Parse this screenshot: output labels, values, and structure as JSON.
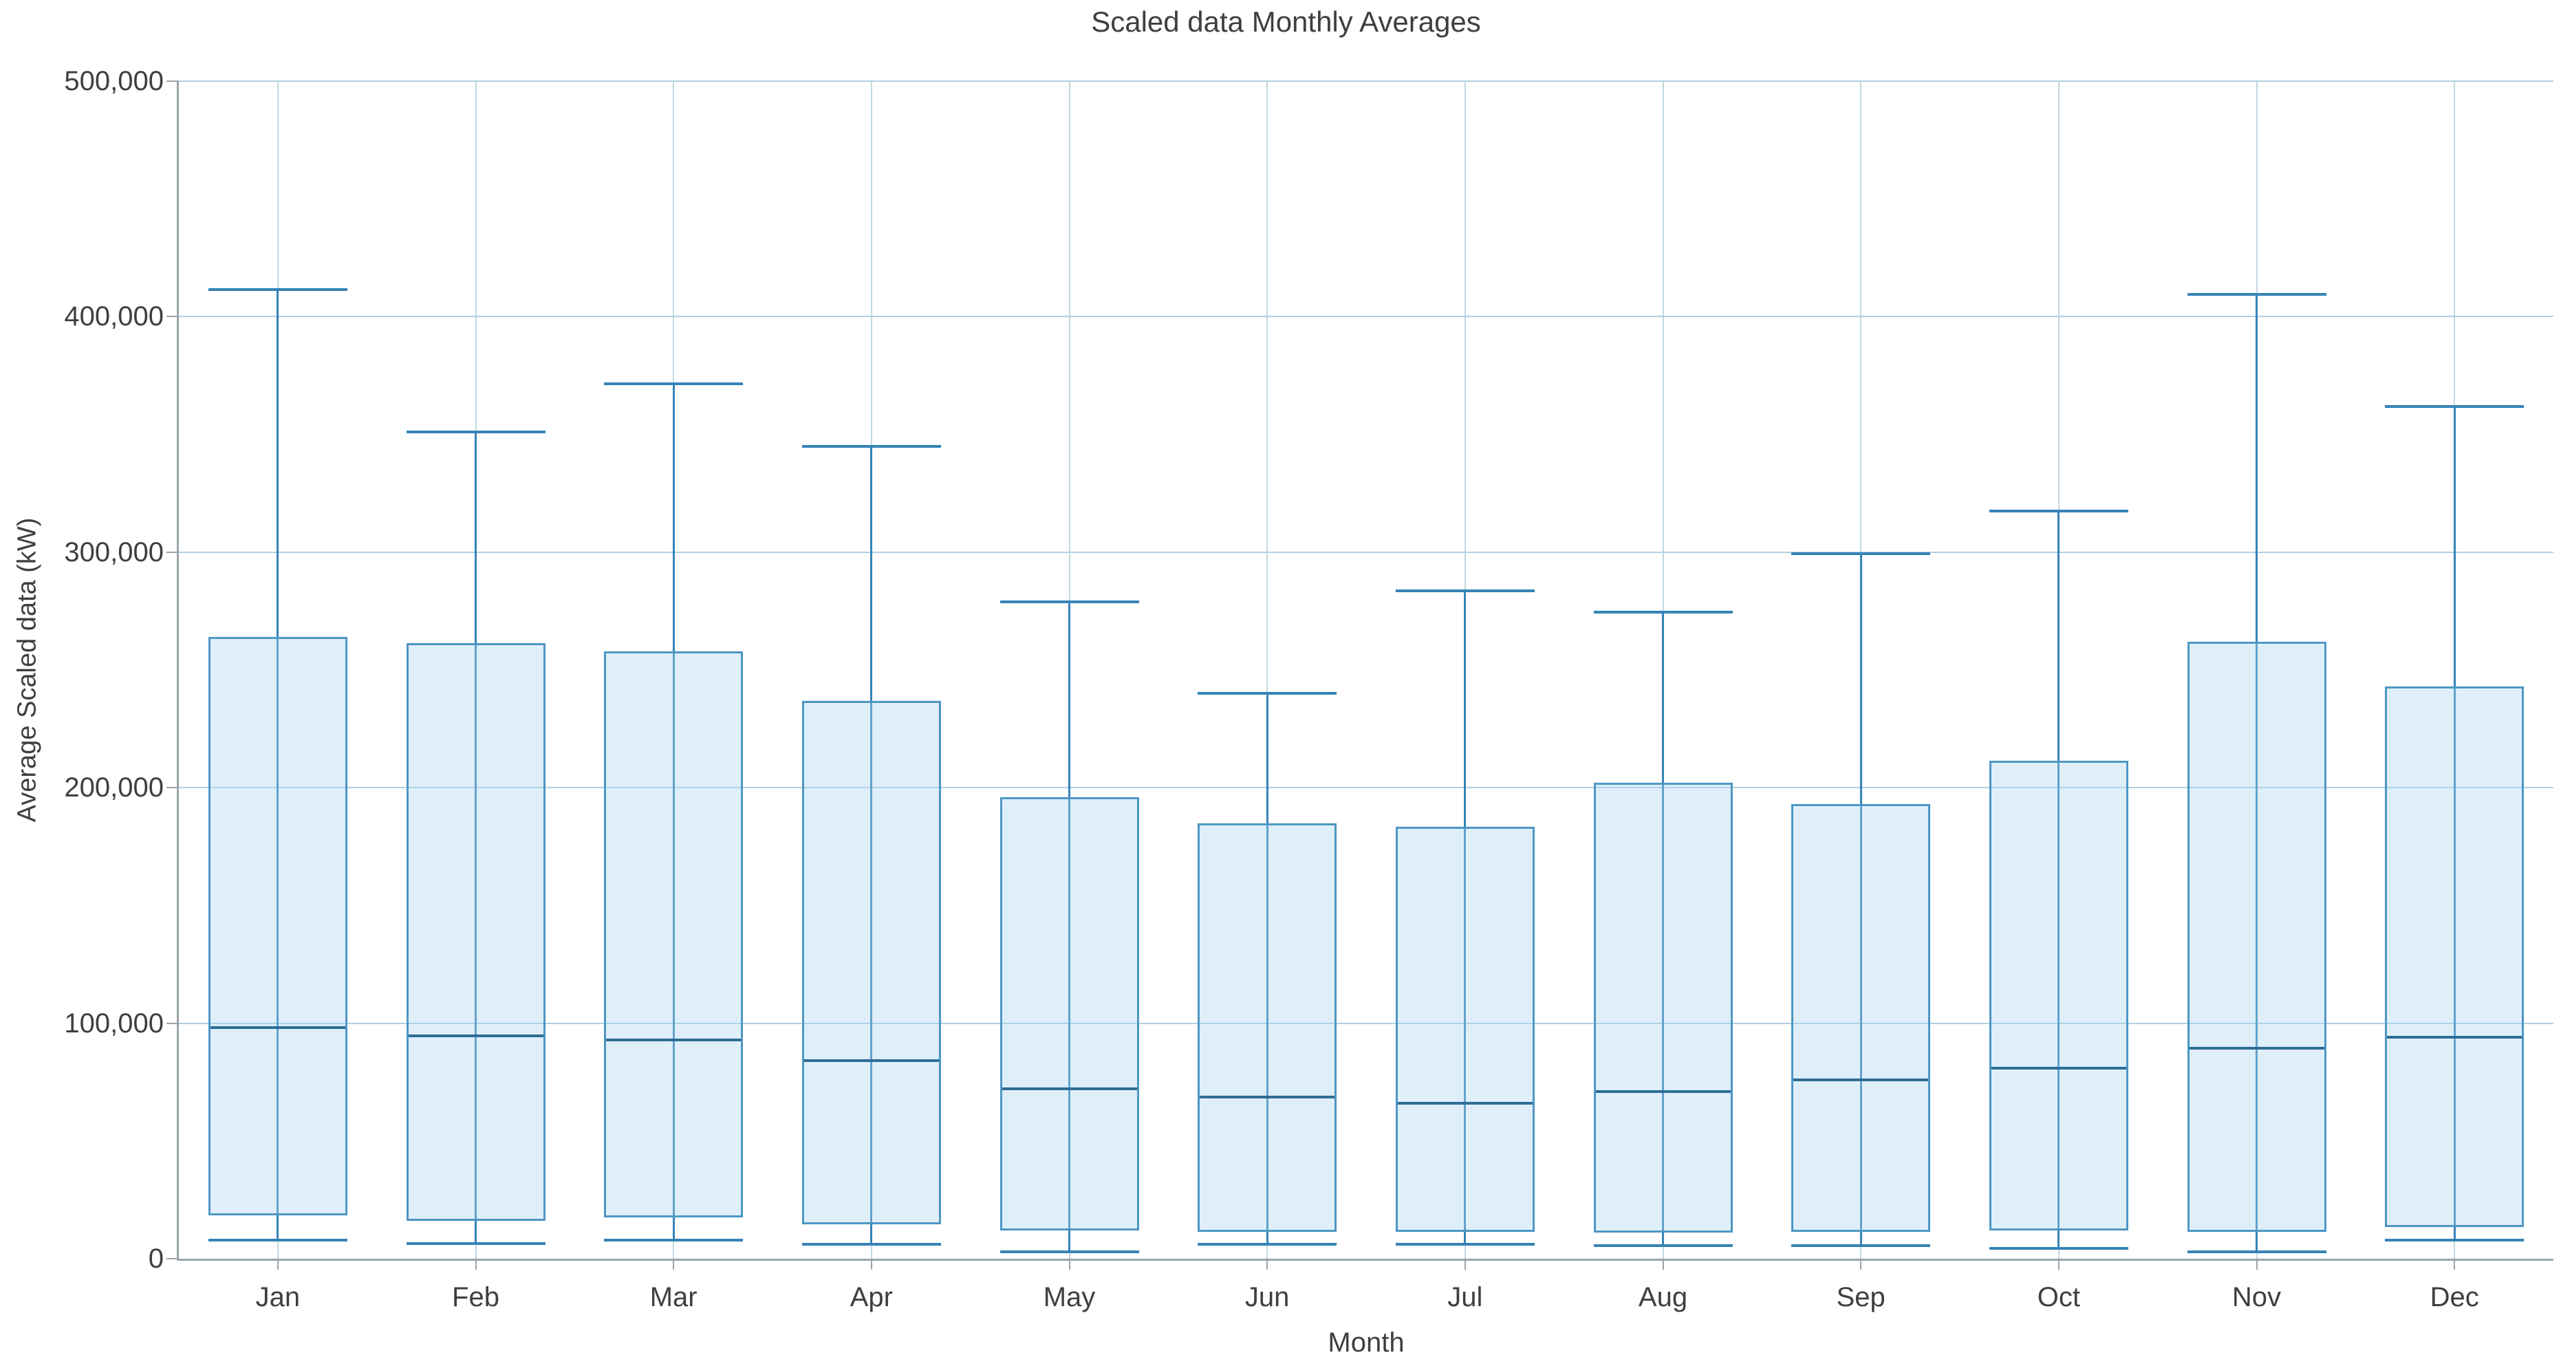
{
  "title": "Scaled data Monthly Averages",
  "axes": {
    "x_label": "Month",
    "y_label": "Average Scaled data (kW)",
    "y_tick_labels": [
      "0",
      "100,000",
      "200,000",
      "300,000",
      "400,000",
      "500,000"
    ],
    "y_tick_values": [
      0,
      100000,
      200000,
      300000,
      400000,
      500000
    ]
  },
  "colors": {
    "box_border": "#4d97c4",
    "box_fill": "rgba(171,214,238,0.38)",
    "whisker": "#3583b8",
    "median": "#2e6d96",
    "gridline_h": "#b0d0e2",
    "gridline_v": "#c3d7e1",
    "axis": "#9aa5ab",
    "text": "#3f3f3f",
    "background": "#ffffff"
  },
  "chart_data": {
    "type": "boxplot",
    "title": "Scaled data Monthly Averages",
    "xlabel": "Month",
    "ylabel": "Average Scaled data (kW)",
    "ylim": [
      0,
      500000
    ],
    "y_tick_step": 100000,
    "grid": true,
    "categories": [
      "Jan",
      "Feb",
      "Mar",
      "Apr",
      "May",
      "Jun",
      "Jul",
      "Aug",
      "Sep",
      "Oct",
      "Nov",
      "Dec"
    ],
    "series": [
      {
        "name": "Scaled data",
        "boxes": [
          {
            "category": "Jan",
            "low": 8000,
            "q1": 18500,
            "median": 98000,
            "q3": 264000,
            "high": 411500
          },
          {
            "category": "Feb",
            "low": 6500,
            "q1": 16000,
            "median": 94500,
            "q3": 261500,
            "high": 351000
          },
          {
            "category": "Mar",
            "low": 8000,
            "q1": 17500,
            "median": 93000,
            "q3": 258000,
            "high": 371500
          },
          {
            "category": "Apr",
            "low": 6000,
            "q1": 14500,
            "median": 84000,
            "q3": 237000,
            "high": 345000
          },
          {
            "category": "May",
            "low": 3000,
            "q1": 12000,
            "median": 72000,
            "q3": 196000,
            "high": 279000
          },
          {
            "category": "Jun",
            "low": 6000,
            "q1": 11500,
            "median": 68500,
            "q3": 185000,
            "high": 240000
          },
          {
            "category": "Jul",
            "low": 6000,
            "q1": 11500,
            "median": 66000,
            "q3": 183500,
            "high": 283500
          },
          {
            "category": "Aug",
            "low": 5500,
            "q1": 11000,
            "median": 71000,
            "q3": 202000,
            "high": 274500
          },
          {
            "category": "Sep",
            "low": 5500,
            "q1": 11500,
            "median": 76000,
            "q3": 193000,
            "high": 299500
          },
          {
            "category": "Oct",
            "low": 4500,
            "q1": 12000,
            "median": 81000,
            "q3": 211500,
            "high": 317500
          },
          {
            "category": "Nov",
            "low": 3000,
            "q1": 11500,
            "median": 89500,
            "q3": 262000,
            "high": 409500
          },
          {
            "category": "Dec",
            "low": 8000,
            "q1": 13500,
            "median": 94000,
            "q3": 243000,
            "high": 362000
          }
        ]
      }
    ]
  }
}
